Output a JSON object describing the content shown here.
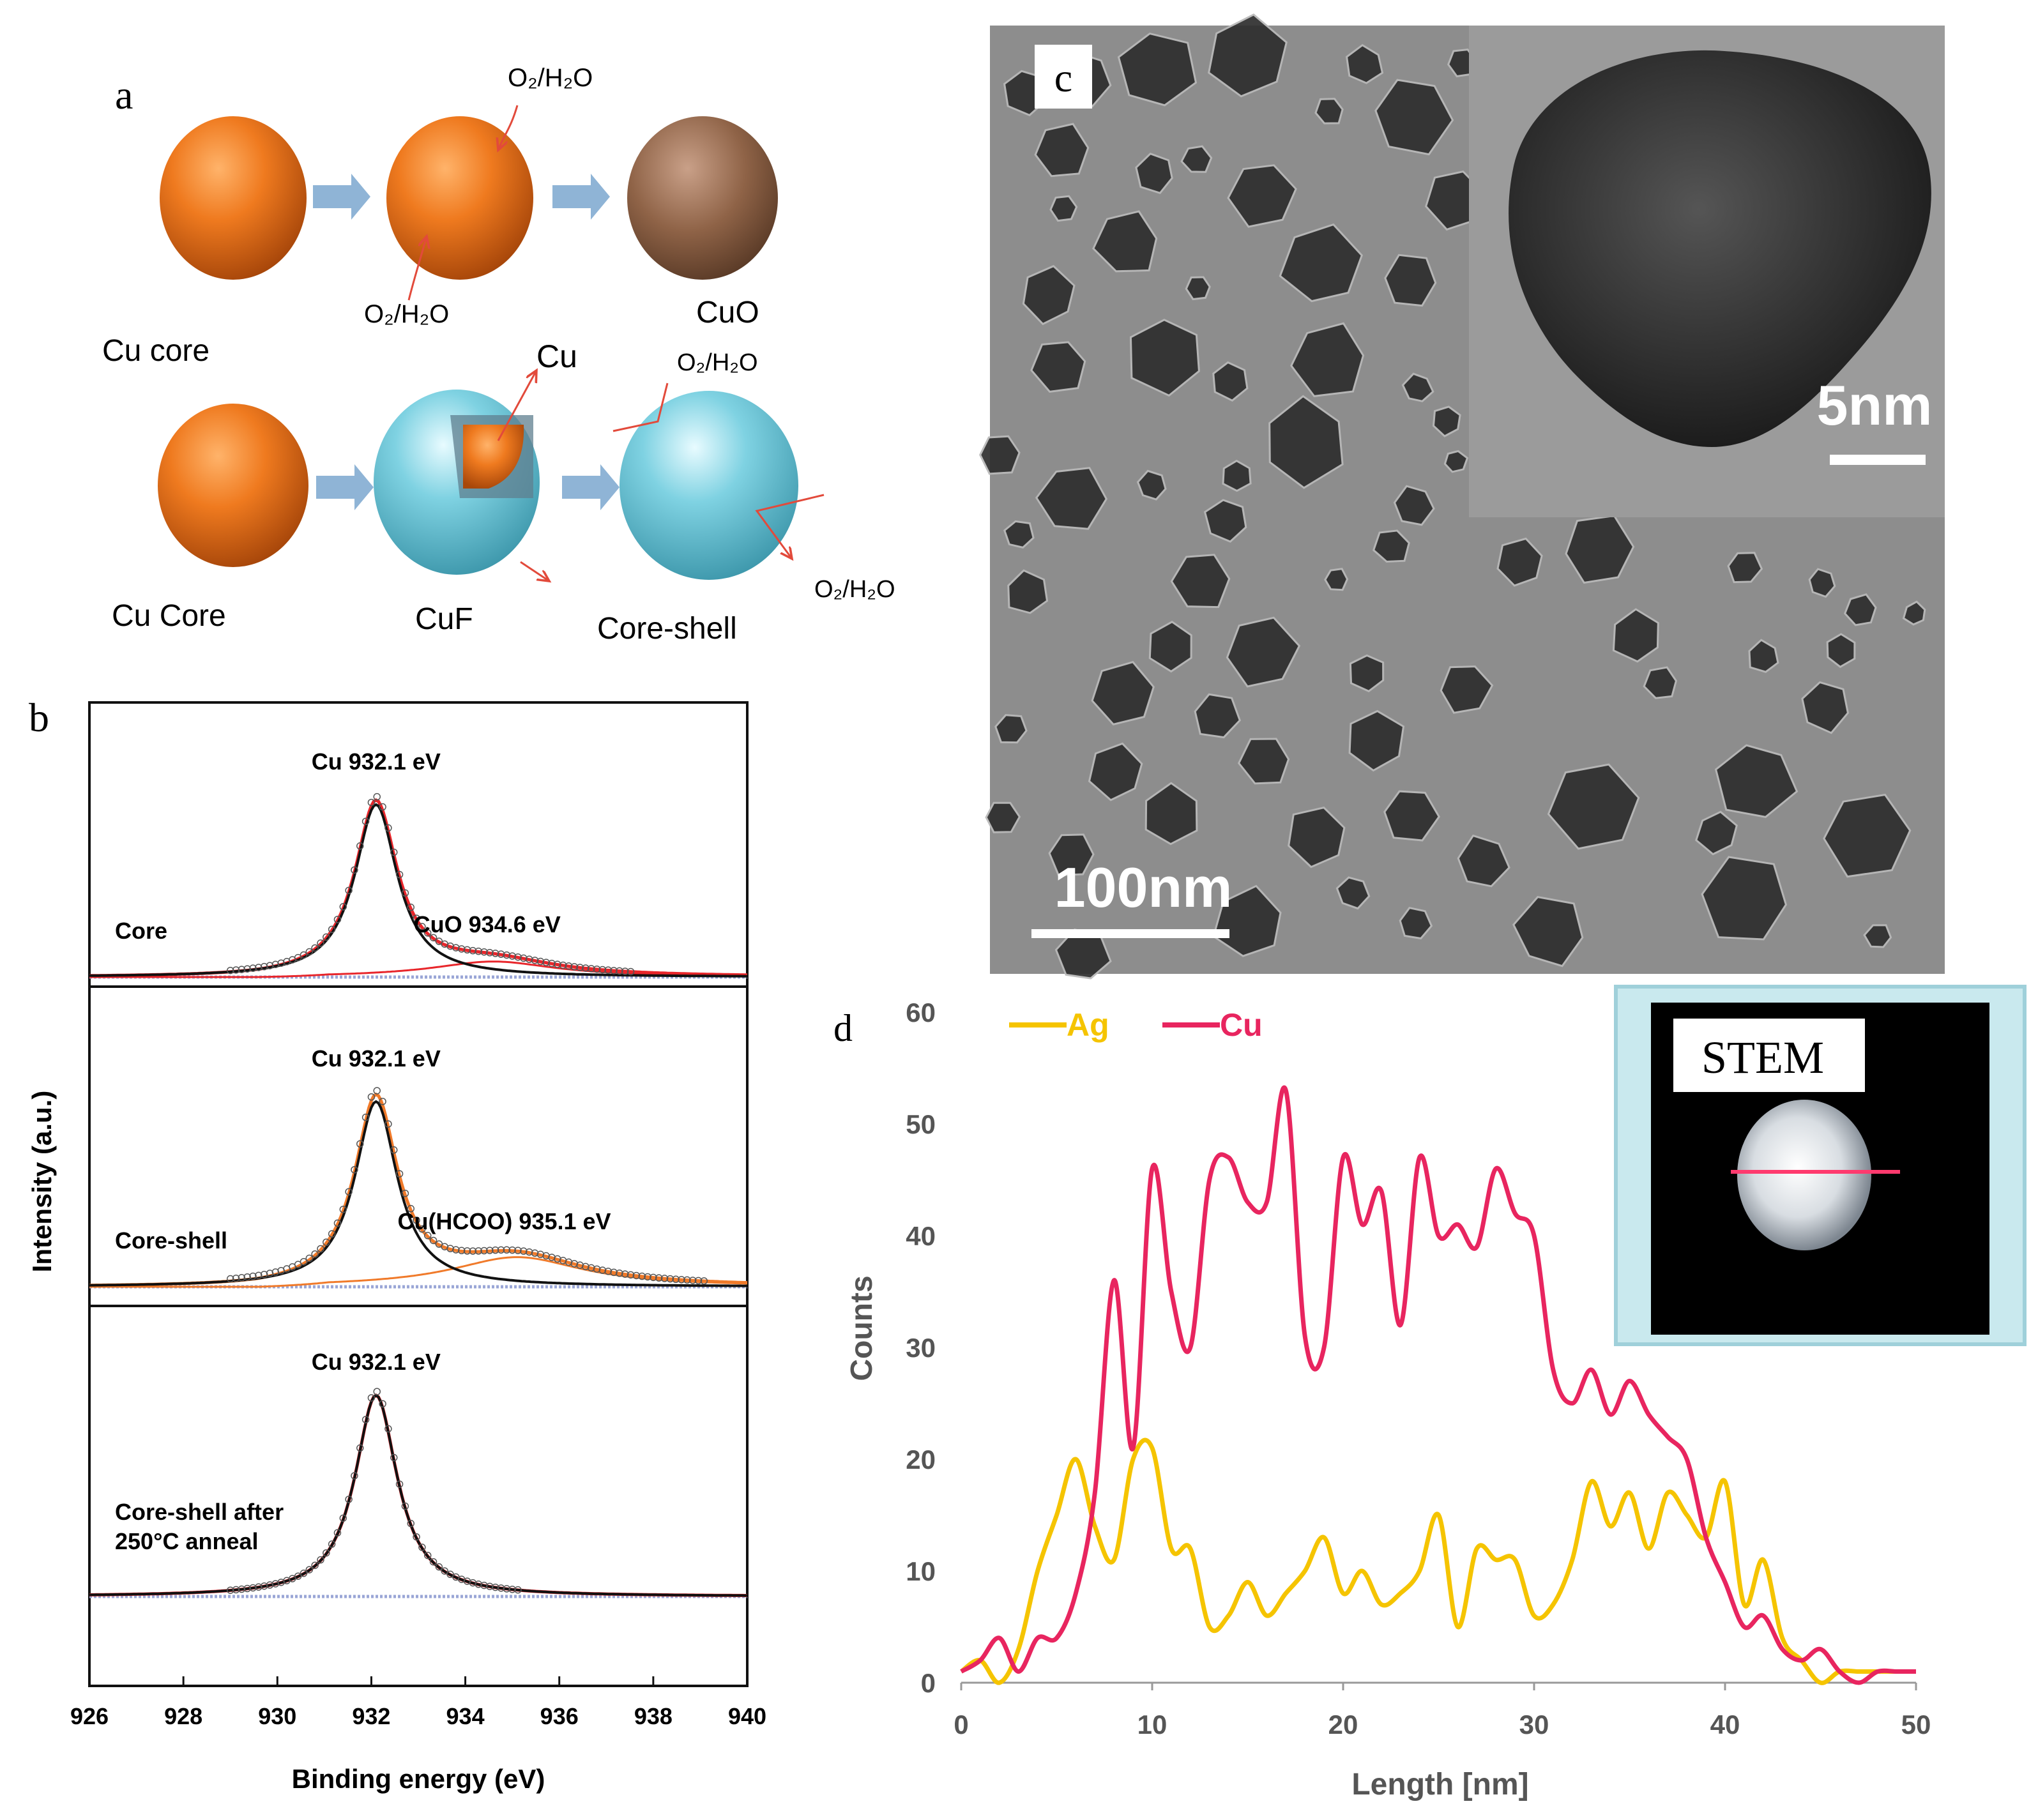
{
  "panel_a": {
    "letter": "a",
    "top_labels": {
      "cu_core": "Cu core",
      "cuo": "CuO",
      "o2_top": "O₂/H₂O",
      "o2_bottom": "O₂/H₂O"
    },
    "bottom_labels": {
      "cu_core": "Cu Core",
      "cuf": "CuF",
      "core_shell": "Core-shell",
      "cu_inner": "Cu",
      "o2_top": "O₂/H₂O",
      "o2_right": "O₂/H₂O"
    },
    "colors": {
      "copper": "#e8731c",
      "cuo": "#9a6a4b",
      "shell": "#6ec6d8",
      "arrow": "#8fb4d6"
    }
  },
  "panel_c": {
    "letter": "c",
    "scale_main": "100nm",
    "scale_inset": "5nm"
  },
  "panel_d": {
    "letter": "d",
    "inset_label": "STEM"
  },
  "chart_data": [
    {
      "id": "b",
      "letter": "b",
      "type": "line",
      "xlabel": "Binding energy (eV)",
      "ylabel": "Intensity (a.u.)",
      "xlim": [
        926,
        940
      ],
      "xticks": [
        926,
        928,
        930,
        932,
        934,
        936,
        938,
        940
      ],
      "subpanels": [
        {
          "name": "Core",
          "peak_label": "Cu 932.1 eV",
          "secondary_label": "CuO 934.6 eV",
          "cu_peak": 932.1,
          "secondary_peak": 934.6,
          "fit_color": "#e8262b"
        },
        {
          "name": "Core-shell",
          "peak_label": "Cu 932.1 eV",
          "secondary_label": "Cu(HCOO) 935.1 eV",
          "cu_peak": 932.1,
          "secondary_peak": 935.1,
          "fit_color": "#f07a2a"
        },
        {
          "name": "Core-shell after 250°C anneal",
          "name_line1": "Core-shell after",
          "name_line2": "250°C anneal",
          "peak_label": "Cu 932.1 eV",
          "cu_peak": 932.1,
          "fit_color": "#e8262b"
        }
      ]
    },
    {
      "id": "d",
      "type": "line",
      "xlabel": "Length [nm]",
      "ylabel": "Counts",
      "xlim": [
        0,
        50
      ],
      "ylim": [
        0,
        60
      ],
      "xticks": [
        0,
        10,
        20,
        30,
        40,
        50
      ],
      "yticks": [
        0,
        10,
        20,
        30,
        40,
        50,
        60
      ],
      "series": [
        {
          "name": "Ag",
          "color": "#f5c400",
          "x": [
            0,
            1,
            2,
            3,
            4,
            5,
            6,
            7,
            8,
            9,
            10,
            11,
            12,
            13,
            14,
            15,
            16,
            17,
            18,
            19,
            20,
            21,
            22,
            23,
            24,
            25,
            26,
            27,
            28,
            29,
            30,
            31,
            32,
            33,
            34,
            35,
            36,
            37,
            38,
            39,
            40,
            41,
            42,
            43,
            44,
            45,
            46,
            47,
            48,
            49
          ],
          "values": [
            1,
            2,
            0,
            3,
            10,
            15,
            20,
            14,
            11,
            20,
            21,
            12,
            12,
            5,
            6,
            9,
            6,
            8,
            10,
            13,
            8,
            10,
            7,
            8,
            10,
            15,
            5,
            12,
            11,
            11,
            6,
            7,
            11,
            18,
            14,
            17,
            12,
            17,
            15,
            13,
            18,
            7,
            11,
            4,
            2,
            0,
            1,
            1,
            1,
            1
          ]
        },
        {
          "name": "Cu",
          "color": "#e8255f",
          "x": [
            0,
            1,
            2,
            3,
            4,
            5,
            6,
            7,
            8,
            9,
            10,
            11,
            12,
            13,
            14,
            15,
            16,
            17,
            18,
            19,
            20,
            21,
            22,
            23,
            24,
            25,
            26,
            27,
            28,
            29,
            30,
            31,
            32,
            33,
            34,
            35,
            36,
            37,
            38,
            39,
            40,
            41,
            42,
            43,
            44,
            45,
            46,
            47,
            48,
            49,
            50
          ],
          "values": [
            1,
            2,
            4,
            1,
            4,
            4,
            8,
            17,
            36,
            21,
            46,
            35,
            30,
            45,
            47,
            43,
            43,
            53,
            31,
            30,
            47,
            41,
            44,
            32,
            47,
            40,
            41,
            39,
            46,
            42,
            40,
            28,
            25,
            28,
            24,
            27,
            24,
            22,
            20,
            13,
            9,
            5,
            6,
            3,
            2,
            3,
            1,
            0,
            1,
            1,
            1
          ]
        }
      ]
    }
  ]
}
